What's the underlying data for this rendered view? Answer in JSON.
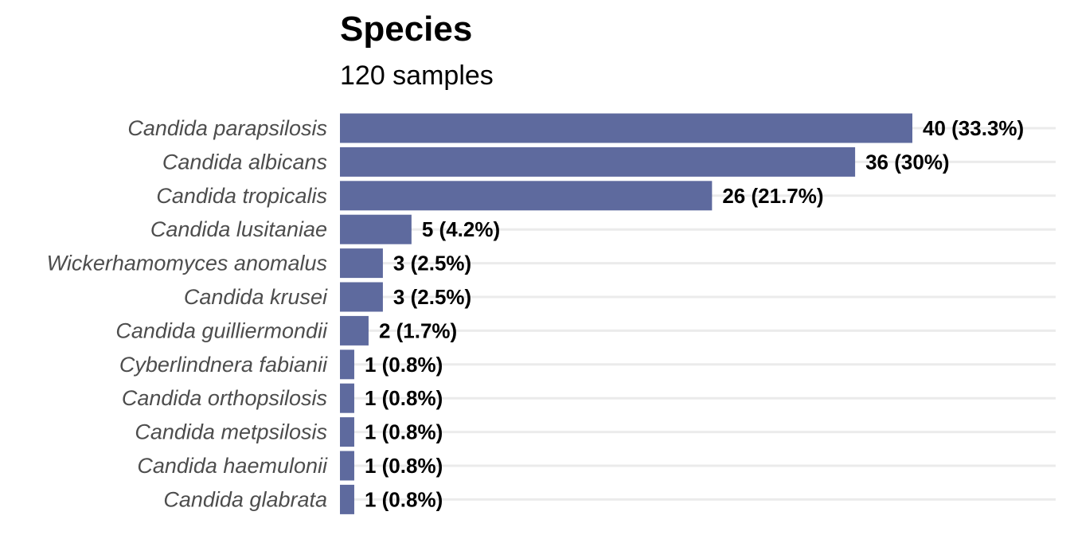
{
  "chart_data": {
    "type": "bar",
    "orientation": "horizontal",
    "title": "Species",
    "subtitle": "120 samples",
    "xlabel": "",
    "ylabel": "",
    "categories": [
      "Candida parapsilosis",
      "Candida albicans",
      "Candida tropicalis",
      "Candida lusitaniae",
      "Wickerhamomyces anomalus",
      "Candida krusei",
      "Candida guilliermondii",
      "Cyberlindnera fabianii",
      "Candida orthopsilosis",
      "Candida metpsilosis",
      "Candida haemulonii",
      "Candida glabrata"
    ],
    "values": [
      40,
      36,
      26,
      5,
      3,
      3,
      2,
      1,
      1,
      1,
      1,
      1
    ],
    "data_labels": [
      "40 (33.3%)",
      "36 (30%)",
      "26 (21.7%)",
      "5 (4.2%)",
      "3 (2.5%)",
      "3 (2.5%)",
      "2 (1.7%)",
      "1 (0.8%)",
      "1 (0.8%)",
      "1 (0.8%)",
      "1 (0.8%)",
      "1 (0.8%)"
    ],
    "xlim": [
      0,
      50
    ],
    "grid": true,
    "legend": "none",
    "bar_color": "#5e6a9e",
    "grid_color": "#ebebeb",
    "label_color": "#4d4d4d"
  }
}
